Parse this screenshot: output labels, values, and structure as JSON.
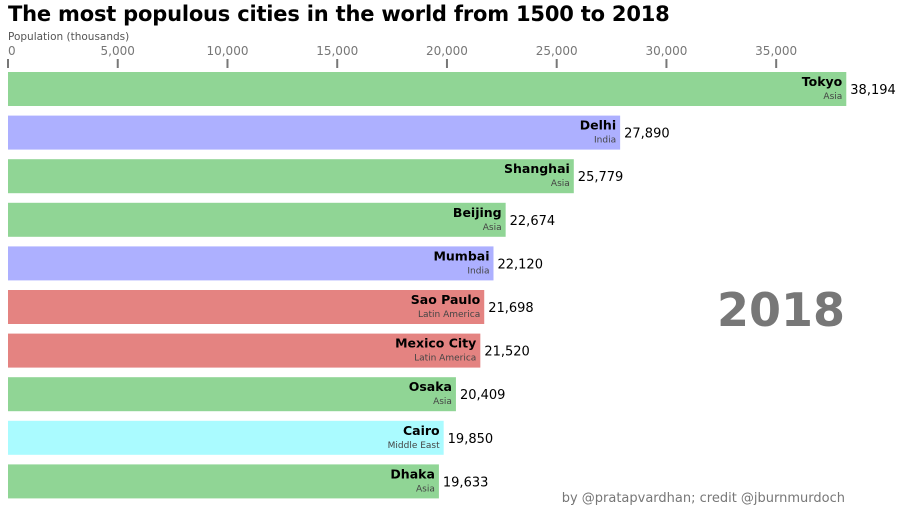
{
  "header": {
    "title": "The most populous cities in the world from 1500 to 2018"
  },
  "colors": {
    "Asia": "#90d595",
    "India": "#adb0ff",
    "Latin America": "#e48381",
    "Middle East": "#aafbff",
    "axis": "#777777",
    "year": "#777777"
  },
  "chart_data": {
    "type": "bar",
    "orientation": "horizontal",
    "title": "The most populous cities in the world from 1500 to 2018",
    "xlabel": "Population (thousands)",
    "ylabel": "",
    "xlim": [
      0,
      38500
    ],
    "x_axis_position": "top",
    "xticks": [
      0,
      5000,
      10000,
      15000,
      20000,
      25000,
      30000,
      35000
    ],
    "xtick_labels": [
      "0",
      "5,000",
      "10,000",
      "15,000",
      "20,000",
      "25,000",
      "30,000",
      "35,000"
    ],
    "grid": false,
    "year": "2018",
    "categories": [
      "Tokyo",
      "Delhi",
      "Shanghai",
      "Beijing",
      "Mumbai",
      "Sao Paulo",
      "Mexico City",
      "Osaka",
      "Cairo",
      "Dhaka"
    ],
    "groups": [
      "Asia",
      "India",
      "Asia",
      "Asia",
      "India",
      "Latin America",
      "Latin America",
      "Asia",
      "Middle East",
      "Asia"
    ],
    "values": [
      38194,
      27890,
      25779,
      22674,
      22120,
      21698,
      21520,
      20409,
      19850,
      19633
    ],
    "value_labels": [
      "38,194",
      "27,890",
      "25,779",
      "22,674",
      "22,120",
      "21,698",
      "21,520",
      "20,409",
      "19,850",
      "19,633"
    ]
  },
  "footer": {
    "credit": "by @pratapvardhan; credit @jburnmurdoch"
  }
}
